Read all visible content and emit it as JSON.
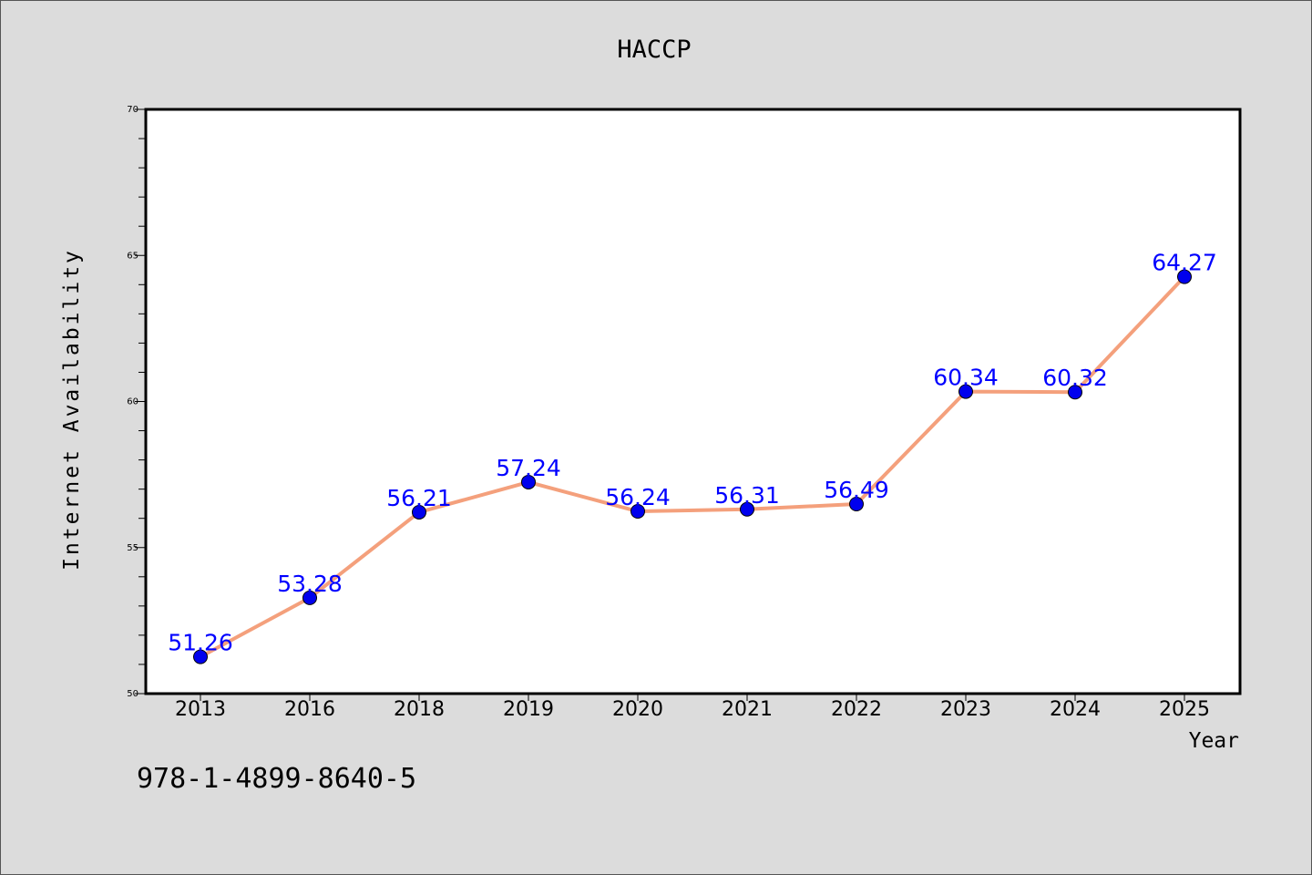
{
  "chart_data": {
    "type": "line",
    "title": "HACCP",
    "xlabel": "Year",
    "ylabel": "Internet Availability",
    "categories": [
      "2013",
      "2016",
      "2018",
      "2019",
      "2020",
      "2021",
      "2022",
      "2023",
      "2024",
      "2025"
    ],
    "series": [
      {
        "values": [
          51.26,
          53.28,
          56.21,
          57.24,
          56.24,
          56.31,
          56.49,
          60.34,
          60.32,
          64.27
        ],
        "data_labels": [
          "51.26",
          "53.28",
          "56.21",
          "57.24",
          "56.24",
          "56.31",
          "56.49",
          "60.34",
          "60.32",
          "64.27"
        ],
        "line_color": "#f4a07c",
        "marker_color": "#0000ee"
      }
    ],
    "ylim": [
      50,
      70
    ],
    "y_ticks": [
      "50",
      "55",
      "60",
      "65",
      "70"
    ],
    "grid": false,
    "legend": "none",
    "label_color": "#0000ff"
  },
  "footer": {
    "text": "978-1-4899-8640-5"
  }
}
